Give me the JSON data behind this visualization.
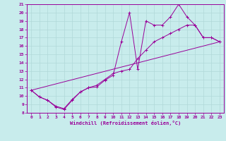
{
  "xlabel": "Windchill (Refroidissement éolien,°C)",
  "xlim": [
    -0.5,
    23.5
  ],
  "ylim": [
    8,
    21
  ],
  "xticks": [
    0,
    1,
    2,
    3,
    4,
    5,
    6,
    7,
    8,
    9,
    10,
    11,
    12,
    13,
    14,
    15,
    16,
    17,
    18,
    19,
    20,
    21,
    22,
    23
  ],
  "yticks": [
    8,
    9,
    10,
    11,
    12,
    13,
    14,
    15,
    16,
    17,
    18,
    19,
    20,
    21
  ],
  "background_color": "#c8ecec",
  "line_color": "#990099",
  "grid_color": "#b0d8d8",
  "series1": [
    [
      0,
      10.7
    ],
    [
      1,
      9.9
    ],
    [
      2,
      9.5
    ],
    [
      3,
      8.7
    ],
    [
      4,
      8.4
    ],
    [
      5,
      9.5
    ],
    [
      6,
      10.5
    ],
    [
      7,
      11.0
    ],
    [
      8,
      11.1
    ],
    [
      9,
      11.9
    ],
    [
      10,
      12.5
    ],
    [
      11,
      16.5
    ],
    [
      12,
      20.0
    ],
    [
      13,
      13.2
    ],
    [
      14,
      19.0
    ],
    [
      15,
      18.5
    ],
    [
      16,
      18.5
    ],
    [
      17,
      19.5
    ],
    [
      18,
      21.0
    ],
    [
      19,
      19.5
    ],
    [
      20,
      18.5
    ],
    [
      21,
      17.0
    ],
    [
      22,
      17.0
    ],
    [
      23,
      16.5
    ]
  ],
  "series2": [
    [
      0,
      10.7
    ],
    [
      1,
      9.9
    ],
    [
      2,
      9.5
    ],
    [
      3,
      8.8
    ],
    [
      4,
      8.5
    ],
    [
      5,
      9.6
    ],
    [
      6,
      10.5
    ],
    [
      7,
      11.0
    ],
    [
      8,
      11.3
    ],
    [
      9,
      12.0
    ],
    [
      10,
      12.7
    ],
    [
      11,
      13.0
    ],
    [
      12,
      13.2
    ],
    [
      13,
      14.5
    ],
    [
      14,
      15.5
    ],
    [
      15,
      16.5
    ],
    [
      16,
      17.0
    ],
    [
      17,
      17.5
    ],
    [
      18,
      18.0
    ],
    [
      19,
      18.5
    ],
    [
      20,
      18.5
    ],
    [
      21,
      17.0
    ],
    [
      22,
      17.0
    ],
    [
      23,
      16.5
    ]
  ],
  "series3_x": [
    0,
    23
  ],
  "series3_y": [
    10.7,
    16.5
  ]
}
